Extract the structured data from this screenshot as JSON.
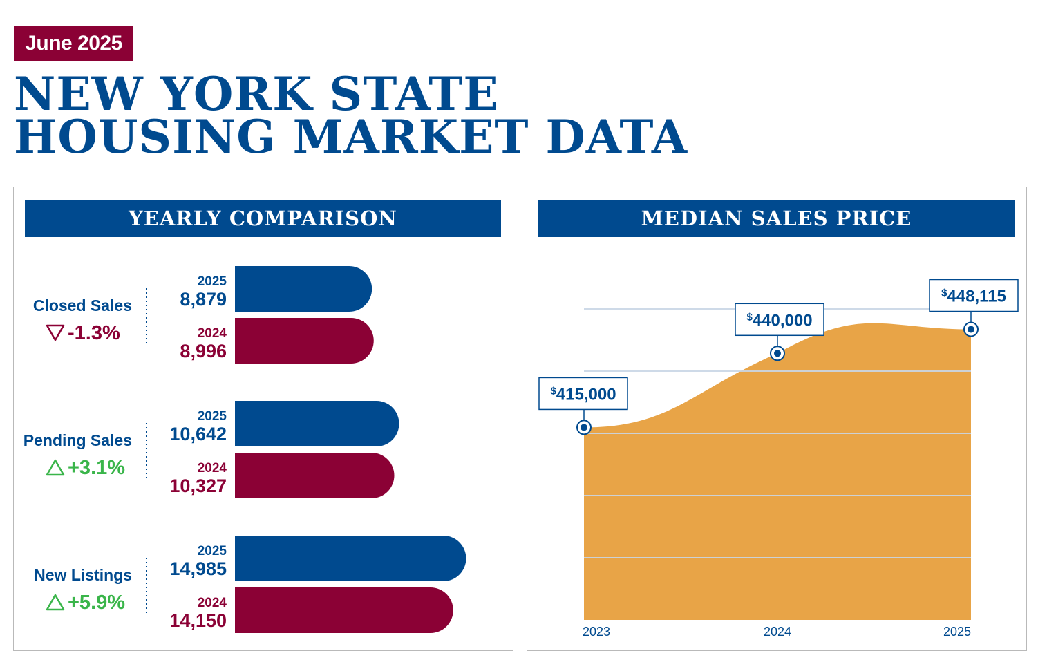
{
  "header": {
    "month": "June 2025",
    "title_line1": "NEW YORK STATE",
    "title_line2": "HOUSING MARKET DATA"
  },
  "colors": {
    "navy": "#004a8f",
    "maroon": "#8b0135",
    "orange": "#e8a447",
    "down": "#8b0135",
    "up": "#3ab54a",
    "gridline": "#c9d6e6"
  },
  "yearly": {
    "title": "YEARLY COMPARISON"
  },
  "median": {
    "title": "MEDIAN SALES PRICE"
  },
  "chart_data": [
    {
      "type": "bar",
      "title": "YEARLY COMPARISON",
      "orientation": "horizontal",
      "categories": [
        "Closed Sales",
        "Pending Sales",
        "New Listings"
      ],
      "series": [
        {
          "name": "2025",
          "values": [
            8879,
            10642,
            14985
          ],
          "labels": [
            "8,879",
            "10,642",
            "14,985"
          ]
        },
        {
          "name": "2024",
          "values": [
            8996,
            10327,
            14150
          ],
          "labels": [
            "8,996",
            "10,327",
            "14,150"
          ]
        }
      ],
      "changes": [
        {
          "text": "-1.3%",
          "direction": "down"
        },
        {
          "text": "+3.1%",
          "direction": "up"
        },
        {
          "text": "+5.9%",
          "direction": "up"
        }
      ]
    },
    {
      "type": "area",
      "title": "MEDIAN SALES PRICE",
      "categories": [
        "2023",
        "2024",
        "2025"
      ],
      "values": [
        415000,
        440000,
        448115
      ],
      "labels": [
        {
          "sup": "$",
          "text": "415,000"
        },
        {
          "sup": "$",
          "text": "440,000"
        },
        {
          "sup": "$",
          "text": "448,115"
        }
      ],
      "ylim": [
        350000,
        455000
      ],
      "grid": true
    }
  ]
}
